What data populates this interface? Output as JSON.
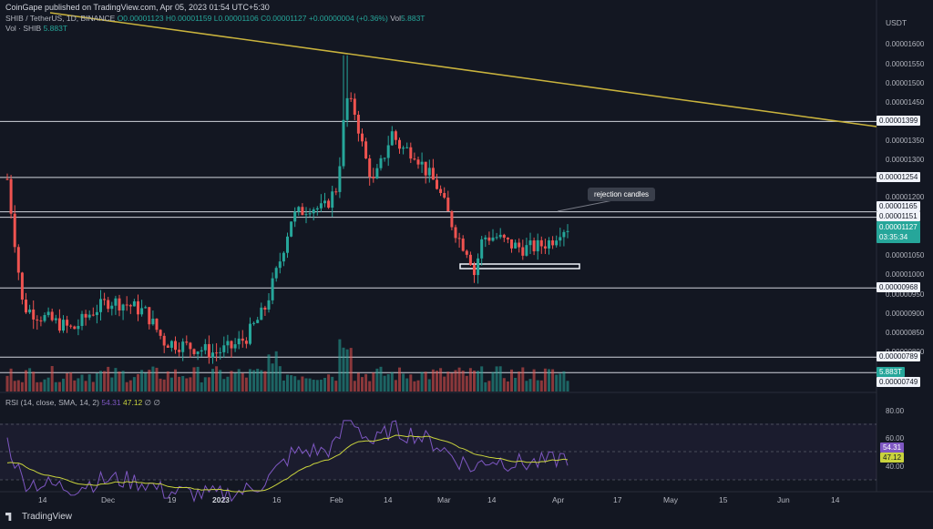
{
  "header": {
    "published": "CoinGape published on TradingView.com, Apr 05, 2023 01:54 UTC+5:30",
    "symbol": "SHIB / TetherUS, 1D, BINANCE",
    "ohlc": "O0.00001123 H0.00001159 L0.00001106 C0.00001127 +0.00000004 (+0.36%)",
    "vol_label": "Vol",
    "vol_value": "5.883T",
    "vol_line_label": "Vol · SHIB",
    "vol_line_value": "5.883T"
  },
  "price_axis": {
    "unit": "USDT",
    "ticks": [
      "0.00001600",
      "0.00001550",
      "0.00001500",
      "0.00001450",
      "0.00001350",
      "0.00001300",
      "0.00001200",
      "0.00001050",
      "0.00001000",
      "0.00000950",
      "0.00000900",
      "0.00000850",
      "0.00000800",
      "0.00000750"
    ],
    "tags": {
      "r1399": "0.00001399",
      "r1254": "0.00001254",
      "r1165": "0.00001165",
      "r1151": "0.00001151",
      "last": "0.00001127",
      "countdown": "03:35:34",
      "s968": "0.00000968",
      "s789": "0.00000789",
      "volTag": "5.883T",
      "s749": "0.00000749"
    }
  },
  "rsi": {
    "label": "RSI (14, close, SMA, 14, 2)",
    "value": "54.31",
    "sma": "47.12",
    "extra": "∅ ∅",
    "ticks": [
      "80.00",
      "60.00",
      "40.00"
    ],
    "tag_rsi": "54.31",
    "tag_sma": "47.12"
  },
  "annotation": {
    "callout": "rejection candles"
  },
  "x_axis": [
    "14",
    "Dec",
    "19",
    "2023",
    "16",
    "Feb",
    "14",
    "Mar",
    "14",
    "Apr",
    "17",
    "May",
    "15",
    "Jun",
    "14"
  ],
  "footer": {
    "brand": "TradingView"
  },
  "colors": {
    "up": "#26a69a",
    "down": "#ef5350",
    "trendline": "#c9b33d",
    "rsi": "#7e57c2",
    "rsi_sma": "#c9d33d"
  },
  "chart_data": {
    "type": "candlestick",
    "y_scale": "price USDT",
    "ylim": [
      7.49e-06,
      1.62e-05
    ],
    "levels": [
      1.399e-05,
      1.254e-05,
      1.165e-05,
      1.151e-05,
      9.68e-06,
      7.89e-06,
      7.49e-06
    ],
    "last_close": 1.127e-05
  }
}
